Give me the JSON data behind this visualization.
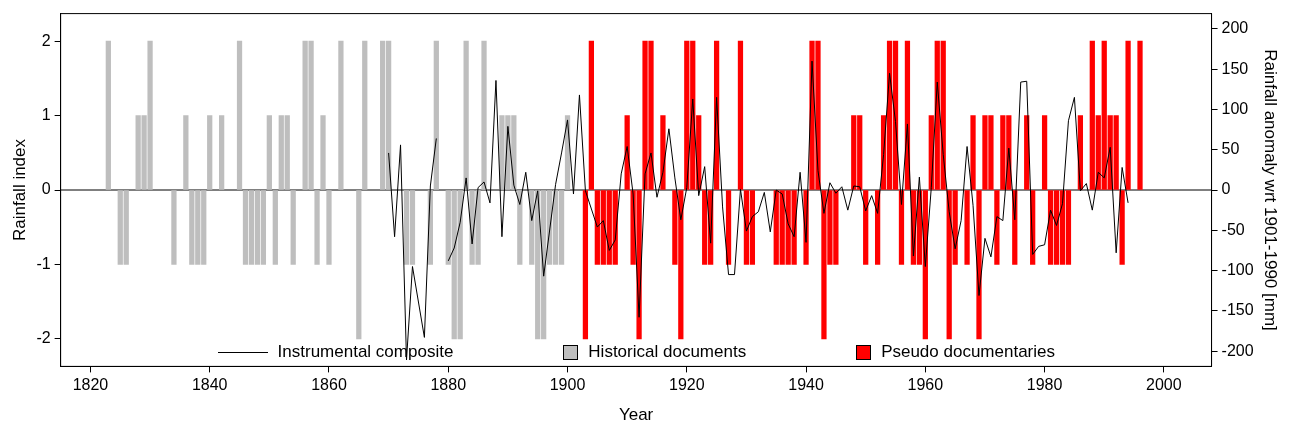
{
  "chart_data": {
    "type": "bar",
    "xlabel": "Year",
    "ylabel": "Rainfall index",
    "y2label": "Rainfall anomaly wrt 1901-1990 [mm]",
    "xlim": [
      1815,
      2008
    ],
    "xticks": [
      1820,
      1840,
      1860,
      1880,
      1900,
      1920,
      1940,
      1960,
      1980,
      2000
    ],
    "ylim": [
      -2.37,
      2.37
    ],
    "yticks": [
      -2,
      -1,
      0,
      1,
      2
    ],
    "y2lim": [
      -219,
      219
    ],
    "y2ticks": [
      -200,
      -150,
      -100,
      -50,
      0,
      50,
      100,
      150,
      200
    ],
    "legend": "bottom",
    "marker": "none",
    "line_style": "solid",
    "ref_lines": [
      {
        "axis": "y",
        "value": 0,
        "color": "#000000"
      }
    ],
    "series": [
      {
        "name": "Instrumental composite",
        "type": "line",
        "axis": "y2",
        "color": "#000000",
        "x": [
          1870,
          1871,
          1872,
          1873,
          1874,
          1876,
          1877,
          1878,
          1879,
          1880,
          1881,
          1882,
          1883,
          1884,
          1885,
          1886,
          1887,
          1888,
          1889,
          1890,
          1891,
          1892,
          1893,
          1894,
          1895,
          1896,
          1898,
          1899,
          1900,
          1901,
          1902,
          1903,
          1905,
          1906,
          1907,
          1908,
          1909,
          1910,
          1911,
          1912,
          1913,
          1914,
          1915,
          1916,
          1917,
          1918,
          1919,
          1920,
          1921,
          1922,
          1923,
          1924,
          1925,
          1926,
          1927,
          1928,
          1929,
          1930,
          1931,
          1932,
          1933,
          1934,
          1935,
          1936,
          1937,
          1938,
          1939,
          1940,
          1941,
          1942,
          1943,
          1944,
          1945,
          1946,
          1947,
          1948,
          1949,
          1950,
          1951,
          1952,
          1953,
          1954,
          1955,
          1956,
          1957,
          1958,
          1959,
          1960,
          1961,
          1962,
          1963,
          1964,
          1965,
          1966,
          1967,
          1968,
          1969,
          1970,
          1971,
          1972,
          1973,
          1974,
          1975,
          1976,
          1977,
          1978,
          1979,
          1980,
          1981,
          1982,
          1983,
          1984,
          1985,
          1986,
          1987,
          1988,
          1989,
          1990,
          1991,
          1992,
          1993,
          1994
        ],
        "values": [
          46,
          -58,
          56,
          -211,
          -95,
          -183,
          5,
          64,
          null,
          -88,
          -72,
          -40,
          15,
          -67,
          3,
          10,
          -16,
          136,
          -58,
          79,
          6,
          -18,
          22,
          -38,
          -1,
          -107,
          7,
          46,
          87,
          -5,
          118,
          -1,
          -46,
          -38,
          -75,
          -62,
          20,
          54,
          -5,
          -158,
          20,
          46,
          -9,
          22,
          76,
          15,
          -37,
          3,
          113,
          -7,
          29,
          -66,
          115,
          -21,
          -105,
          -105,
          1,
          -51,
          -33,
          -27,
          -3,
          -52,
          0,
          -5,
          -42,
          -58,
          22,
          -65,
          160,
          24,
          -29,
          9,
          -4,
          4,
          -25,
          5,
          4,
          -26,
          -7,
          -29,
          44,
          145,
          85,
          -18,
          82,
          -82,
          16,
          -95,
          3,
          134,
          44,
          -27,
          -73,
          -38,
          54,
          -19,
          -131,
          -60,
          -83,
          -33,
          -38,
          52,
          -37,
          134,
          135,
          -80,
          -70,
          -68,
          -25,
          -44,
          -17,
          86,
          115,
          -1,
          8,
          -25,
          22,
          15,
          53,
          -78,
          28,
          -16
        ]
      },
      {
        "name": "Historical documents",
        "color": "#bebebe",
        "x": [
          1823,
          1825,
          1826,
          1828,
          1829,
          1830,
          1834,
          1836,
          1837,
          1838,
          1839,
          1840,
          1842,
          1845,
          1846,
          1847,
          1848,
          1849,
          1850,
          1851,
          1852,
          1853,
          1854,
          1856,
          1857,
          1858,
          1859,
          1860,
          1862,
          1865,
          1866,
          1869,
          1870,
          1873,
          1874,
          1877,
          1878,
          1880,
          1881,
          1882,
          1883,
          1884,
          1885,
          1886,
          1889,
          1890,
          1891,
          1892,
          1894,
          1895,
          1896,
          1897,
          1898,
          1899,
          1900
        ],
        "values": [
          2,
          -1,
          -1,
          1,
          1,
          2,
          -1,
          1,
          -1,
          -1,
          -1,
          1,
          1,
          2,
          -1,
          -1,
          -1,
          -1,
          1,
          -1,
          1,
          1,
          -1,
          2,
          2,
          -1,
          1,
          -1,
          2,
          -2,
          2,
          2,
          2,
          -1,
          -1,
          -1,
          2,
          -1,
          -2,
          -2,
          2,
          -1,
          -1,
          2,
          1,
          1,
          1,
          -1,
          -1,
          -2,
          -2,
          -1,
          -1,
          -1,
          1
        ]
      },
      {
        "name": "Pseudo documentaries",
        "color": "#ff0000",
        "x": [
          1903,
          1904,
          1905,
          1906,
          1907,
          1908,
          1910,
          1911,
          1912,
          1913,
          1914,
          1916,
          1918,
          1919,
          1920,
          1921,
          1922,
          1923,
          1924,
          1925,
          1927,
          1929,
          1930,
          1931,
          1935,
          1936,
          1937,
          1938,
          1940,
          1941,
          1942,
          1943,
          1944,
          1945,
          1948,
          1949,
          1950,
          1952,
          1953,
          1954,
          1955,
          1956,
          1957,
          1958,
          1959,
          1960,
          1961,
          1962,
          1963,
          1964,
          1965,
          1967,
          1968,
          1969,
          1970,
          1971,
          1972,
          1973,
          1974,
          1975,
          1977,
          1978,
          1980,
          1981,
          1982,
          1983,
          1984,
          1986,
          1988,
          1989,
          1990,
          1991,
          1992,
          1993,
          1994,
          1996
        ],
        "values": [
          -2,
          2,
          -1,
          -1,
          -1,
          -1,
          1,
          -1,
          -2,
          2,
          2,
          1,
          -1,
          -2,
          2,
          2,
          1,
          -1,
          -1,
          2,
          -1,
          2,
          -1,
          -1,
          -1,
          -1,
          -1,
          -1,
          -1,
          2,
          2,
          -2,
          -1,
          -1,
          1,
          1,
          -1,
          -1,
          1,
          2,
          2,
          -1,
          2,
          -1,
          -1,
          -2,
          1,
          2,
          2,
          -2,
          -1,
          -1,
          1,
          -2,
          1,
          1,
          -1,
          1,
          1,
          -1,
          1,
          -1,
          1,
          -1,
          -1,
          -1,
          -1,
          1,
          2,
          1,
          2,
          1,
          1,
          -1,
          2,
          2
        ]
      }
    ]
  }
}
